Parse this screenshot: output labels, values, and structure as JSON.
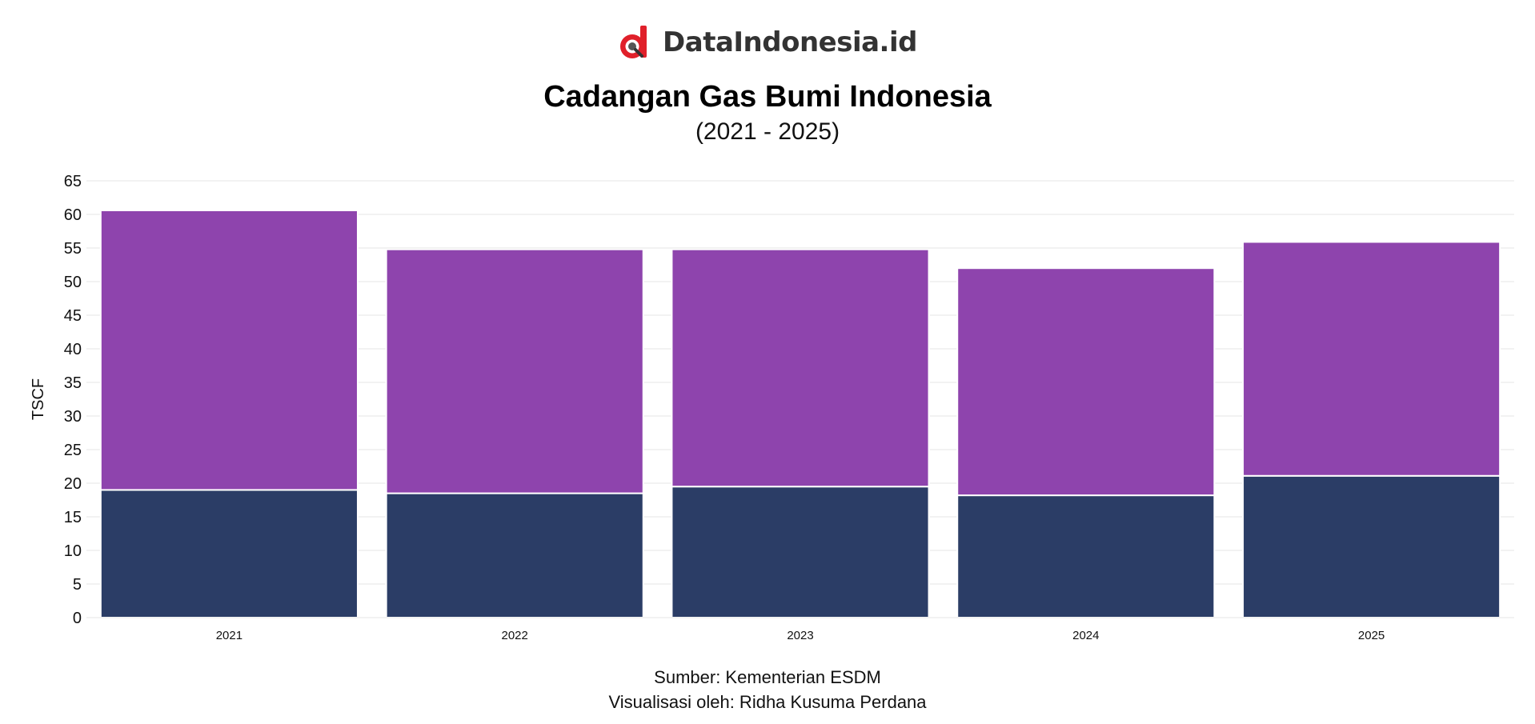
{
  "brand": {
    "name": "DataIndonesia.id",
    "logo_icon": "dataindonesia-logo-icon",
    "logo_color": "#e0202a"
  },
  "chart_data": {
    "type": "bar",
    "stacked": true,
    "title": "Cadangan Gas Bumi Indonesia",
    "subtitle": "(2021 - 2025)",
    "xlabel": "",
    "ylabel": "TSCF",
    "categories": [
      "2021",
      "2022",
      "2023",
      "2024",
      "2025"
    ],
    "series": [
      {
        "values": [
          19.0,
          18.5,
          19.5,
          18.2,
          21.1
        ],
        "color": "#2b3d66"
      },
      {
        "values": [
          41.6,
          36.3,
          35.3,
          33.8,
          34.8
        ],
        "color": "#8e44ad"
      }
    ],
    "totals": [
      60.6,
      54.8,
      54.8,
      52.0,
      55.9
    ],
    "ylim": [
      0,
      65
    ],
    "yticks": [
      0,
      5,
      10,
      15,
      20,
      25,
      30,
      35,
      40,
      45,
      50,
      55,
      60,
      65
    ],
    "grid": true,
    "legend": "none"
  },
  "footer": {
    "source": "Sumber: Kementerian ESDM",
    "credit": "Visualisasi oleh: Ridha Kusuma Perdana"
  }
}
